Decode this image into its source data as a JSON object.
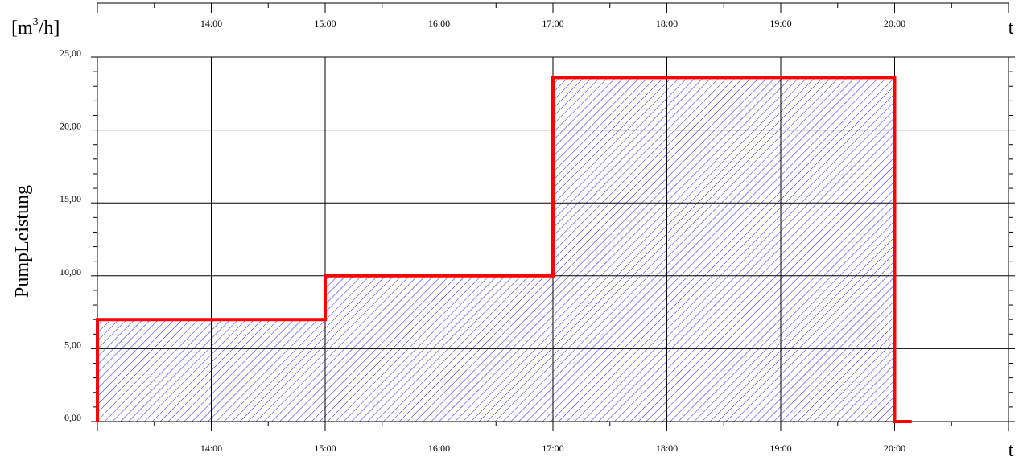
{
  "chart_data": {
    "type": "area",
    "ylabel": "PumpLeistung",
    "unit_label": "[m³/h]",
    "unit_base": "[m",
    "unit_sup": "3",
    "unit_tail": "/h]",
    "xlabel": "t",
    "xlabel_top": "t",
    "x_range": [
      13.0,
      21.0
    ],
    "ylim": [
      0,
      25
    ],
    "x_tick_values": [
      14,
      15,
      16,
      17,
      18,
      19,
      20
    ],
    "x_tick_labels": [
      "14:00",
      "15:00",
      "16:00",
      "17:00",
      "18:00",
      "19:00",
      "20:00"
    ],
    "y_tick_values": [
      0,
      5,
      10,
      15,
      20,
      25
    ],
    "y_tick_labels": [
      "0,00",
      "5,00",
      "10,00",
      "15,00",
      "20,00",
      "25,00"
    ],
    "grid": true,
    "series": [
      {
        "x": [
          13.0,
          13.0,
          15.0,
          15.0,
          17.0,
          17.0,
          20.0,
          20.0,
          20.15
        ],
        "y": [
          0,
          7,
          7,
          10,
          10,
          23.6,
          23.6,
          0,
          0
        ]
      }
    ],
    "colors": {
      "line": "#ff0000",
      "hatch": "#1a1aff",
      "grid": "#000000"
    }
  }
}
